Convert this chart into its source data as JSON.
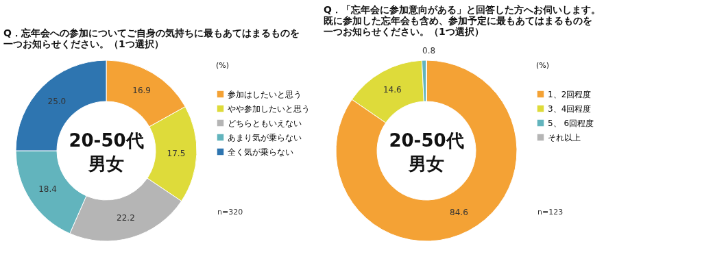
{
  "chart_data": [
    {
      "type": "donut",
      "title": "Q．忘年会への参加についてご自身の気持ちに最もあてはまるものを一つお知らせください。（1つ選択）",
      "legend_title": "(%)",
      "legend": "right",
      "categories": [
        "参加はしたいと思う",
        "やや参加したいと思う",
        "どちらともいえない",
        "あまり気が乗らない",
        "全く気が乗らない"
      ],
      "values": [
        16.9,
        17.5,
        22.2,
        18.4,
        25.0
      ],
      "value_labels": [
        "16.9",
        "17.5",
        "22.2",
        "18.4",
        "25.0"
      ],
      "colors": [
        "#f4a235",
        "#dedb3a",
        "#b5b5b5",
        "#62b4bd",
        "#2e75b0"
      ],
      "annotations": [
        "20-50代男女",
        "n=320"
      ]
    },
    {
      "type": "donut",
      "title": "Q．「忘年会に参加意向がある」と回答した方へお伺いします。既に参加した忘年会も含め、参加予定に最もあてはまるものを一つお知らせください。（1つ選択）",
      "legend_title": "(%)",
      "legend": "right",
      "categories": [
        "1、2回程度",
        "3、4回程度",
        "5、 6回程度",
        "それ以上"
      ],
      "values": [
        84.6,
        14.6,
        0.8,
        0
      ],
      "value_labels": [
        "84.6",
        "14.6",
        "0.8",
        null
      ],
      "colors": [
        "#f4a235",
        "#dedb3a",
        "#62b4bd",
        "#b5b5b5"
      ],
      "annotations": [
        "20-50代男女",
        "n=123"
      ]
    }
  ]
}
